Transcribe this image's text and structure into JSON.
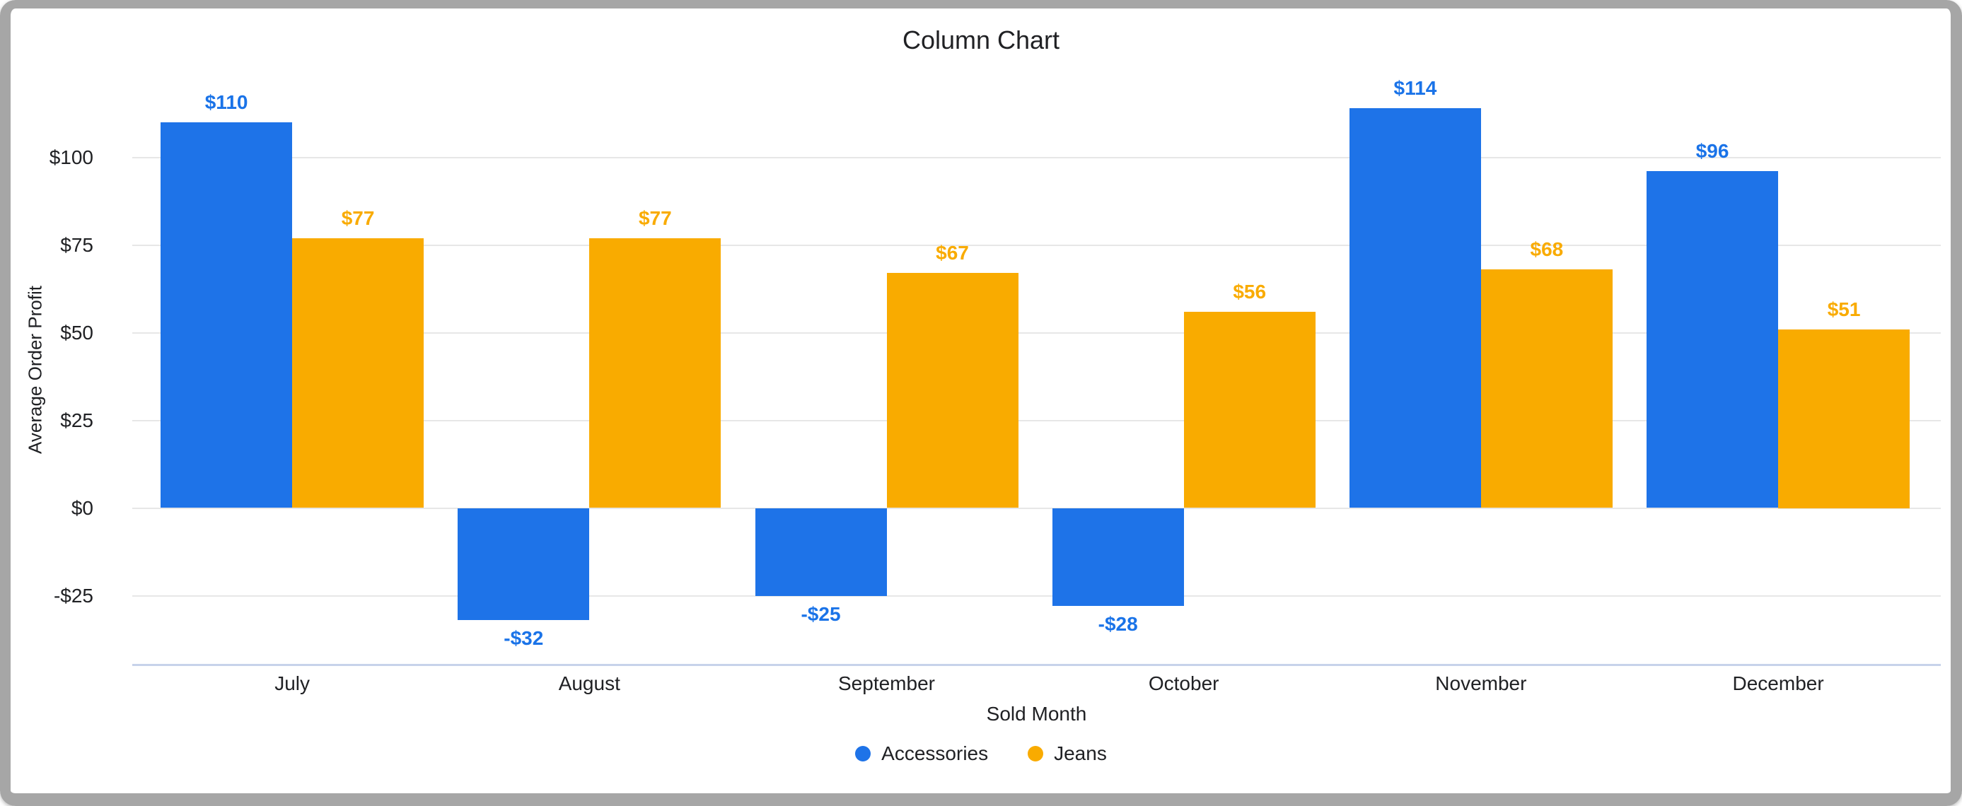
{
  "window": {
    "border_color": "#a6a6a6",
    "background_color": "#ffffff"
  },
  "chart_data": {
    "type": "bar",
    "title": "Column Chart",
    "xlabel": "Sold Month",
    "ylabel": "Average Order Profit",
    "categories": [
      "July",
      "August",
      "September",
      "October",
      "November",
      "December"
    ],
    "series": [
      {
        "name": "Accessories",
        "color": "#1e73e8",
        "label_color": "#1a73e8",
        "values": [
          110,
          -32,
          -25,
          -28,
          114,
          96
        ],
        "labels": [
          "$110",
          "-$32",
          "-$25",
          "-$28",
          "$114",
          "$96"
        ]
      },
      {
        "name": "Jeans",
        "color": "#f9ab00",
        "label_color": "#f9ab00",
        "values": [
          77,
          77,
          67,
          56,
          68,
          51
        ],
        "labels": [
          "$77",
          "$77",
          "$67",
          "$56",
          "$68",
          "$51"
        ]
      }
    ],
    "y_ticks": [
      {
        "value": 100,
        "label": "$100"
      },
      {
        "value": 75,
        "label": "$75"
      },
      {
        "value": 50,
        "label": "$50"
      },
      {
        "value": 25,
        "label": "$25"
      },
      {
        "value": 0,
        "label": "$0"
      },
      {
        "value": -25,
        "label": "-$25"
      }
    ],
    "ylim": [
      -45,
      123
    ],
    "grid": true,
    "legend_position": "bottom",
    "gridline_color": "#e7e7e7",
    "axis_line_color": "#c7d3ea",
    "text_color": "#202124"
  }
}
